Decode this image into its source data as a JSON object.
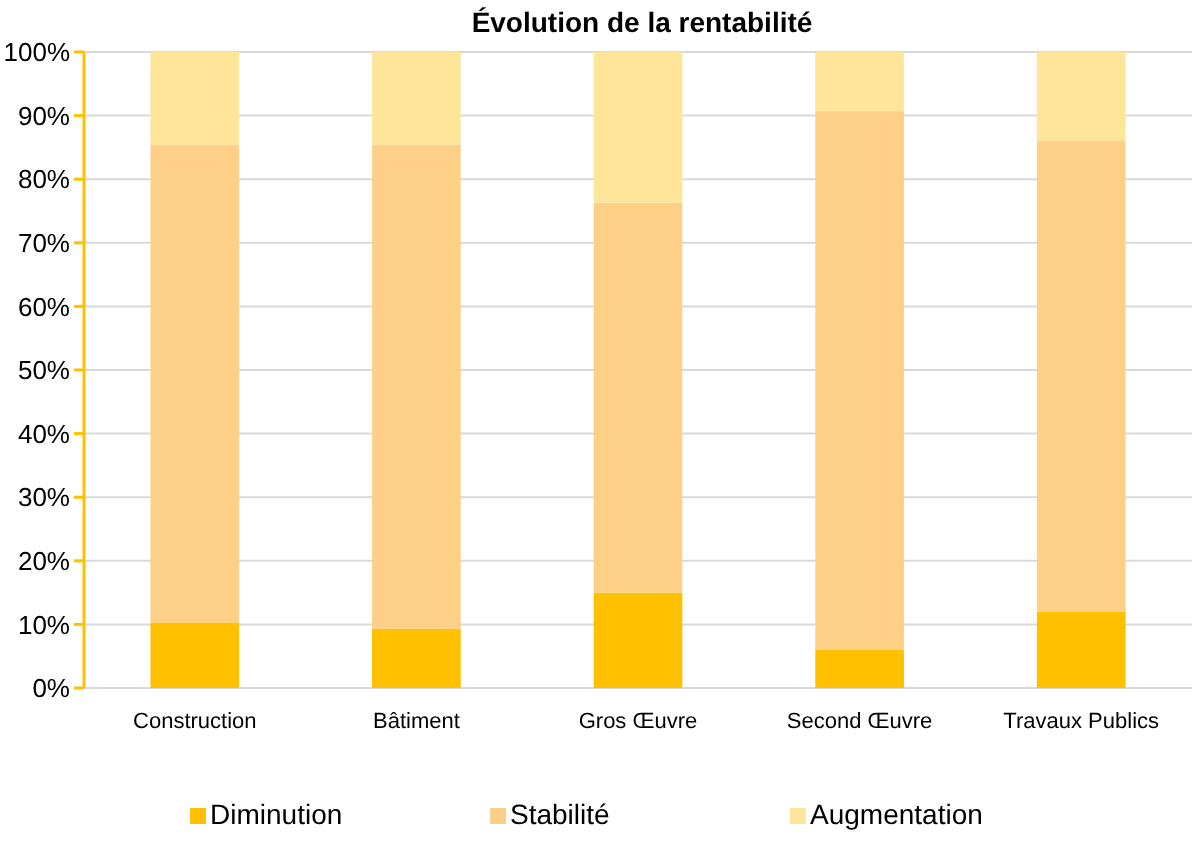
{
  "chart_data": {
    "type": "bar",
    "title": "Évolution de la rentabilité",
    "stacked": true,
    "categories": [
      "Construction",
      "Bâtiment",
      "Gros Œuvre",
      "Second Œuvre",
      "Travaux Publics"
    ],
    "series": [
      {
        "name": "Diminution",
        "color": "#ffc000",
        "values": [
          10.3,
          9.3,
          15,
          6,
          12
        ]
      },
      {
        "name": "Stabilité",
        "color": "#fed087",
        "values": [
          75.1,
          76.1,
          61.3,
          84.7,
          74
        ]
      },
      {
        "name": "Augmentation",
        "color": "#fee599",
        "values": [
          14.6,
          14.6,
          23.7,
          9.3,
          14
        ]
      }
    ],
    "ylim": [
      0,
      100
    ],
    "yticks": [
      {
        "value": 0,
        "label": "0%"
      },
      {
        "value": 10,
        "label": "10%"
      },
      {
        "value": 20,
        "label": "20%"
      },
      {
        "value": 30,
        "label": "30%"
      },
      {
        "value": 40,
        "label": "40%"
      },
      {
        "value": 50,
        "label": "50%"
      },
      {
        "value": 60,
        "label": "60%"
      },
      {
        "value": 70,
        "label": "70%"
      },
      {
        "value": 80,
        "label": "80%"
      },
      {
        "value": 90,
        "label": "90%"
      },
      {
        "value": 100,
        "label": "100%"
      }
    ],
    "grid": "y",
    "legend": "bottom"
  }
}
